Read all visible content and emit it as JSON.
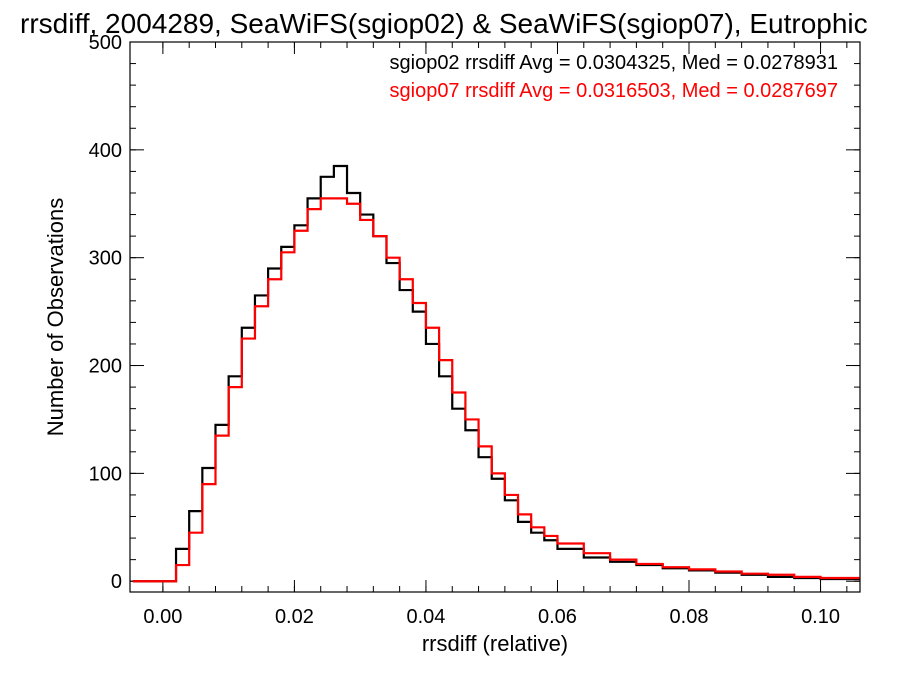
{
  "chart_data": {
    "type": "line",
    "title": "rrsdiff, 2004289, SeaWiFS(sgiop02) & SeaWiFS(sgiop07), Eutrophic",
    "xlabel": "rrsdiff (relative)",
    "ylabel": "Number of Observations",
    "xlim": [
      -0.005,
      0.106
    ],
    "ylim": [
      -10,
      500
    ],
    "xticks": [
      "0.00",
      "0.02",
      "0.04",
      "0.06",
      "0.08",
      "0.10"
    ],
    "yticks": [
      "0",
      "100",
      "200",
      "300",
      "400",
      "500"
    ],
    "grid": false,
    "step_histogram": true,
    "series": [
      {
        "name": "sgiop02",
        "legend": "sgiop02 rrsdiff Avg = 0.0304325, Med = 0.0278931",
        "color": "#000000",
        "x": [
          0.0,
          0.002,
          0.004,
          0.006,
          0.008,
          0.01,
          0.012,
          0.014,
          0.016,
          0.018,
          0.02,
          0.022,
          0.024,
          0.026,
          0.028,
          0.03,
          0.032,
          0.034,
          0.036,
          0.038,
          0.04,
          0.042,
          0.044,
          0.046,
          0.048,
          0.05,
          0.052,
          0.054,
          0.056,
          0.058,
          0.06,
          0.064,
          0.068,
          0.072,
          0.076,
          0.08,
          0.084,
          0.088,
          0.092,
          0.096,
          0.1,
          0.105
        ],
        "y": [
          0,
          30,
          65,
          105,
          145,
          190,
          235,
          265,
          290,
          310,
          330,
          355,
          375,
          385,
          360,
          340,
          320,
          295,
          270,
          250,
          220,
          190,
          160,
          140,
          115,
          95,
          75,
          55,
          45,
          38,
          30,
          22,
          18,
          15,
          12,
          10,
          8,
          6,
          4,
          3,
          2,
          2
        ]
      },
      {
        "name": "sgiop07",
        "legend": "sgiop07 rrsdiff Avg = 0.0316503, Med = 0.0287697",
        "color": "#ff0000",
        "x": [
          0.0,
          0.002,
          0.004,
          0.006,
          0.008,
          0.01,
          0.012,
          0.014,
          0.016,
          0.018,
          0.02,
          0.022,
          0.024,
          0.026,
          0.028,
          0.03,
          0.032,
          0.034,
          0.036,
          0.038,
          0.04,
          0.042,
          0.044,
          0.046,
          0.048,
          0.05,
          0.052,
          0.054,
          0.056,
          0.058,
          0.06,
          0.064,
          0.068,
          0.072,
          0.076,
          0.08,
          0.084,
          0.088,
          0.092,
          0.096,
          0.1,
          0.105
        ],
        "y": [
          0,
          15,
          45,
          90,
          135,
          180,
          225,
          255,
          280,
          305,
          325,
          345,
          355,
          355,
          350,
          335,
          320,
          300,
          280,
          258,
          235,
          205,
          175,
          150,
          125,
          100,
          80,
          62,
          50,
          42,
          35,
          26,
          20,
          16,
          13,
          11,
          9,
          7,
          6,
          4,
          3,
          3
        ]
      }
    ]
  }
}
